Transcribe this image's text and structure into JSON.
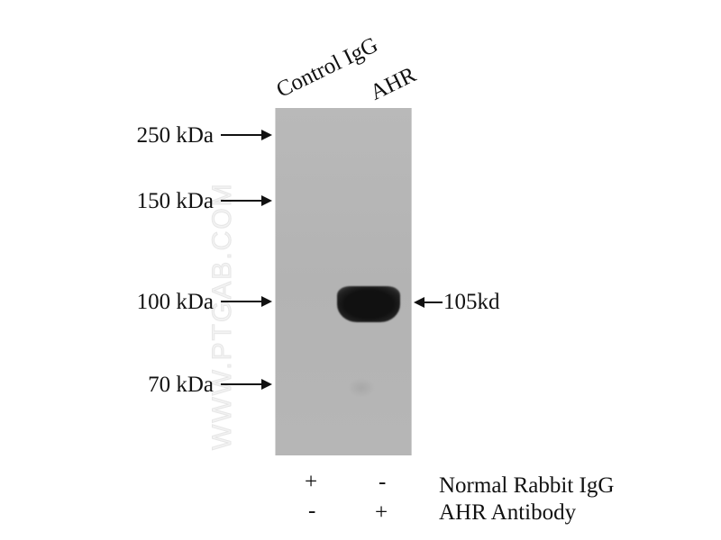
{
  "lanes": [
    "Control IgG",
    "AHR"
  ],
  "markers": [
    {
      "label": "250 kDa"
    },
    {
      "label": "150 kDa"
    },
    {
      "label": "100 kDa"
    },
    {
      "label": "70 kDa"
    }
  ],
  "band_label": "105kd",
  "watermark": "WWW.PTGAB.COM",
  "conditions": [
    {
      "label": "Normal Rabbit IgG",
      "lane1": "+",
      "lane2": "-"
    },
    {
      "label": "AHR Antibody",
      "lane1": "-",
      "lane2": "+"
    }
  ],
  "colors": {
    "membrane": "#b5b5b5",
    "band": "#151515"
  }
}
